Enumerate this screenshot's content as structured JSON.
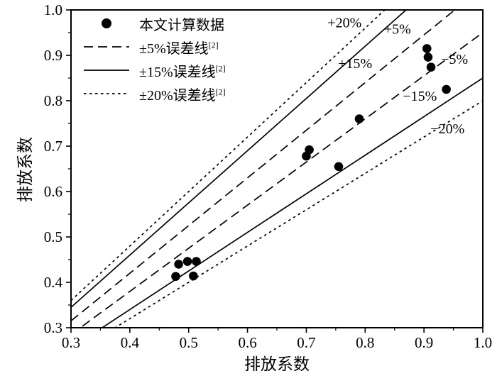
{
  "colors": {
    "foreground": "#000000",
    "background": "#ffffff"
  },
  "chart_data": {
    "type": "scatter",
    "title": "",
    "xlabel": "排放系数",
    "ylabel": "排放系数",
    "xlim": [
      0.3,
      1.0
    ],
    "ylim": [
      0.3,
      1.0
    ],
    "x_ticks": [
      0.3,
      0.4,
      0.5,
      0.6,
      0.7,
      0.8,
      0.9,
      1.0
    ],
    "y_ticks": [
      0.3,
      0.4,
      0.5,
      0.6,
      0.7,
      0.8,
      0.9,
      1.0
    ],
    "grid": false,
    "legend_position": "upper-left-inside",
    "points": [
      [
        0.478,
        0.413
      ],
      [
        0.483,
        0.44
      ],
      [
        0.498,
        0.446
      ],
      [
        0.508,
        0.414
      ],
      [
        0.513,
        0.446
      ],
      [
        0.7,
        0.678
      ],
      [
        0.705,
        0.692
      ],
      [
        0.755,
        0.655
      ],
      [
        0.79,
        0.76
      ],
      [
        0.905,
        0.915
      ],
      [
        0.907,
        0.896
      ],
      [
        0.912,
        0.874
      ],
      [
        0.938,
        0.825
      ]
    ],
    "reference_lines": [
      {
        "label": "+20%",
        "slope": 1.2,
        "style": "short-dash",
        "label_pos": [
          0.765,
          0.962
        ]
      },
      {
        "label": "+15%",
        "slope": 1.15,
        "style": "solid",
        "label_pos": [
          0.783,
          0.872
        ]
      },
      {
        "label": "+5%",
        "slope": 1.05,
        "style": "long-dash",
        "label_pos": [
          0.855,
          0.948
        ]
      },
      {
        "label": "−5%",
        "slope": 0.95,
        "style": "long-dash",
        "label_pos": [
          0.952,
          0.881
        ]
      },
      {
        "label": "−15%",
        "slope": 0.85,
        "style": "solid",
        "label_pos": [
          0.893,
          0.8
        ]
      },
      {
        "label": "−20%",
        "slope": 0.8,
        "style": "short-dash",
        "label_pos": [
          0.94,
          0.728
        ]
      }
    ],
    "legend": [
      {
        "marker": "dot",
        "label": "本文计算数据",
        "ref": ""
      },
      {
        "marker": "long-dash",
        "label": "±5%误差线",
        "ref": "[2]"
      },
      {
        "marker": "solid",
        "label": "±15%误差线",
        "ref": "[2]"
      },
      {
        "marker": "short-dash",
        "label": "±20%误差线",
        "ref": "[2]"
      }
    ]
  }
}
